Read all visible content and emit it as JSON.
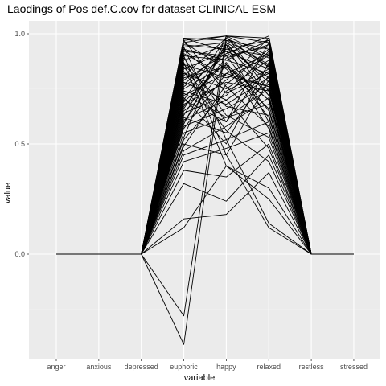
{
  "colors": {
    "panel_bg": "#ebebeb",
    "grid_major": "#ffffff",
    "grid_minor": "#f2f2f2",
    "line": "#000000",
    "tick_text": "#4d4d4d"
  },
  "chart_data": {
    "type": "line",
    "title": "Laodings of Pos def.C.cov for dataset CLINICAL ESM",
    "xlabel": "variable",
    "ylabel": "value",
    "categories": [
      "anger",
      "anxious",
      "depressed",
      "euphoric",
      "happy",
      "relaxed",
      "restless",
      "stressed"
    ],
    "ylim": [
      -0.47,
      1.0
    ],
    "yticks": [
      0.0,
      0.5,
      1.0
    ],
    "ytick_labels": [
      "0.0",
      "0.5",
      "1.0"
    ],
    "grid": true,
    "legend": "none",
    "series": [
      {
        "values": [
          0,
          0,
          0,
          0.97,
          0.99,
          0.96,
          0,
          0
        ]
      },
      {
        "values": [
          0,
          0,
          0,
          0.98,
          0.97,
          0.93,
          0,
          0
        ]
      },
      {
        "values": [
          0,
          0,
          0,
          0.96,
          0.99,
          0.98,
          0,
          0
        ]
      },
      {
        "values": [
          0,
          0,
          0,
          0.95,
          0.93,
          0.9,
          0,
          0
        ]
      },
      {
        "values": [
          0,
          0,
          0,
          0.94,
          0.96,
          0.85,
          0,
          0
        ]
      },
      {
        "values": [
          0,
          0,
          0,
          0.92,
          0.9,
          0.94,
          0,
          0
        ]
      },
      {
        "values": [
          0,
          0,
          0,
          0.9,
          0.88,
          0.82,
          0,
          0
        ]
      },
      {
        "values": [
          0,
          0,
          0,
          0.88,
          0.95,
          0.78,
          0,
          0
        ]
      },
      {
        "values": [
          0,
          0,
          0,
          0.86,
          0.8,
          0.9,
          0,
          0
        ]
      },
      {
        "values": [
          0,
          0,
          0,
          0.84,
          0.92,
          0.72,
          0,
          0
        ]
      },
      {
        "values": [
          0,
          0,
          0,
          0.82,
          0.75,
          0.88,
          0,
          0
        ]
      },
      {
        "values": [
          0,
          0,
          0,
          0.8,
          0.85,
          0.7,
          0,
          0
        ]
      },
      {
        "values": [
          0,
          0,
          0,
          0.78,
          0.7,
          0.83,
          0,
          0
        ]
      },
      {
        "values": [
          0,
          0,
          0,
          0.76,
          0.9,
          0.65,
          0,
          0
        ]
      },
      {
        "values": [
          0,
          0,
          0,
          0.74,
          0.68,
          0.8,
          0,
          0
        ]
      },
      {
        "values": [
          0,
          0,
          0,
          0.72,
          0.82,
          0.76,
          0,
          0
        ]
      },
      {
        "values": [
          0,
          0,
          0,
          0.7,
          0.6,
          0.86,
          0,
          0
        ]
      },
      {
        "values": [
          0,
          0,
          0,
          0.68,
          0.78,
          0.74,
          0,
          0
        ]
      },
      {
        "values": [
          0,
          0,
          0,
          0.66,
          0.95,
          0.6,
          0,
          0
        ]
      },
      {
        "values": [
          0,
          0,
          0,
          0.64,
          0.72,
          0.92,
          0,
          0
        ]
      },
      {
        "values": [
          0,
          0,
          0,
          0.62,
          0.55,
          0.81,
          0,
          0
        ]
      },
      {
        "values": [
          0,
          0,
          0,
          0.6,
          0.86,
          0.7,
          0,
          0
        ]
      },
      {
        "values": [
          0,
          0,
          0,
          0.58,
          0.66,
          0.77,
          0,
          0
        ]
      },
      {
        "values": [
          0,
          0,
          0,
          0.55,
          0.62,
          0.75,
          0,
          0
        ]
      },
      {
        "values": [
          0,
          0,
          0,
          0.52,
          0.74,
          0.84,
          0,
          0
        ]
      },
      {
        "values": [
          0,
          0,
          0,
          0.5,
          0.45,
          0.79,
          0,
          0
        ]
      },
      {
        "values": [
          0,
          0,
          0,
          0.47,
          0.58,
          0.71,
          0,
          0
        ]
      },
      {
        "values": [
          0,
          0,
          0,
          0.45,
          0.52,
          0.6,
          0,
          0
        ]
      },
      {
        "values": [
          0,
          0,
          0,
          0.42,
          0.48,
          0.55,
          0,
          0
        ]
      },
      {
        "values": [
          0,
          0,
          0,
          0.38,
          0.35,
          0.5,
          0,
          0
        ]
      },
      {
        "values": [
          0,
          0,
          0,
          0.32,
          0.24,
          0.45,
          0,
          0
        ]
      },
      {
        "values": [
          0,
          0,
          0,
          0.16,
          0.18,
          0.37,
          0,
          0
        ]
      },
      {
        "values": [
          0,
          0,
          0,
          0.12,
          0.4,
          0.3,
          0,
          0
        ]
      },
      {
        "values": [
          0,
          0,
          0,
          -0.28,
          0.99,
          0.9,
          0,
          0
        ]
      },
      {
        "values": [
          0,
          0,
          0,
          -0.41,
          0.97,
          0.86,
          0,
          0
        ]
      },
      {
        "values": [
          0,
          0,
          0,
          0.94,
          0.52,
          0.14,
          0,
          0
        ]
      },
      {
        "values": [
          0,
          0,
          0,
          0.9,
          0.45,
          0.12,
          0,
          0
        ]
      },
      {
        "values": [
          0,
          0,
          0,
          0.87,
          0.4,
          0.25,
          0,
          0
        ]
      },
      {
        "values": [
          0,
          0,
          0,
          0.85,
          0.6,
          0.96,
          0,
          0
        ]
      },
      {
        "values": [
          0,
          0,
          0,
          0.81,
          0.98,
          0.89,
          0,
          0
        ]
      },
      {
        "values": [
          0,
          0,
          0,
          0.77,
          0.93,
          0.97,
          0,
          0
        ]
      },
      {
        "values": [
          0,
          0,
          0,
          0.73,
          0.62,
          0.68,
          0,
          0
        ]
      },
      {
        "values": [
          0,
          0,
          0,
          0.69,
          0.87,
          0.62,
          0,
          0
        ]
      },
      {
        "values": [
          0,
          0,
          0,
          0.65,
          0.79,
          0.98,
          0,
          0
        ]
      },
      {
        "values": [
          0,
          0,
          0,
          0.61,
          0.7,
          0.48,
          0,
          0
        ]
      },
      {
        "values": [
          0,
          0,
          0,
          0.57,
          0.82,
          0.91,
          0,
          0
        ]
      },
      {
        "values": [
          0,
          0,
          0,
          0.53,
          0.99,
          0.74,
          0,
          0
        ]
      },
      {
        "values": [
          0,
          0,
          0,
          0.96,
          0.84,
          0.66,
          0,
          0
        ]
      },
      {
        "values": [
          0,
          0,
          0,
          0.93,
          0.76,
          0.58,
          0,
          0
        ]
      },
      {
        "values": [
          0,
          0,
          0,
          0.89,
          0.63,
          0.53,
          0,
          0
        ]
      },
      {
        "values": [
          0,
          0,
          0,
          0.83,
          0.56,
          0.42,
          0,
          0
        ]
      },
      {
        "values": [
          0,
          0,
          0,
          0.79,
          0.91,
          0.99,
          0,
          0
        ]
      },
      {
        "values": [
          0,
          0,
          0,
          0.71,
          0.5,
          0.87,
          0,
          0
        ]
      },
      {
        "values": [
          0,
          0,
          0,
          0.67,
          0.89,
          0.95,
          0,
          0
        ]
      },
      {
        "values": [
          0,
          0,
          0,
          0.63,
          0.94,
          0.8,
          0,
          0
        ]
      },
      {
        "values": [
          0,
          0,
          0,
          0.59,
          0.96,
          0.72,
          0,
          0
        ]
      },
      {
        "values": [
          0,
          0,
          0,
          0.49,
          0.77,
          0.93,
          0,
          0
        ]
      },
      {
        "values": [
          0,
          0,
          0,
          0.97,
          0.73,
          0.82,
          0,
          0
        ]
      },
      {
        "values": [
          0,
          0,
          0,
          0.91,
          0.81,
          0.76,
          0,
          0
        ]
      },
      {
        "values": [
          0,
          0,
          0,
          0.86,
          0.67,
          0.63,
          0,
          0
        ]
      },
      {
        "values": [
          0,
          0,
          0,
          0.75,
          0.86,
          0.57,
          0,
          0
        ]
      },
      {
        "values": [
          0,
          0,
          0,
          0.7,
          0.98,
          0.85,
          0,
          0
        ]
      },
      {
        "values": [
          0,
          0,
          0,
          0.93,
          0.88,
          0.97,
          0,
          0
        ]
      },
      {
        "values": [
          0,
          0,
          0,
          0.98,
          0.92,
          0.84,
          0,
          0
        ]
      }
    ]
  }
}
